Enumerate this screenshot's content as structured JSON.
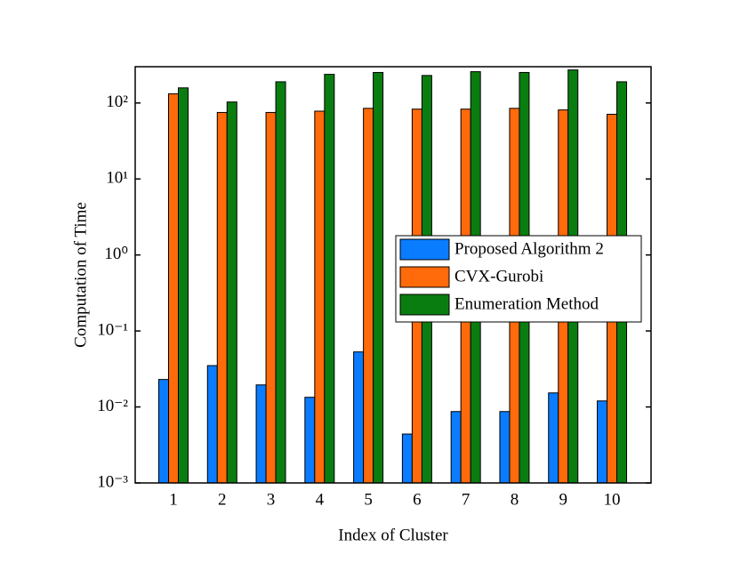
{
  "chart_data": {
    "type": "bar",
    "x_label": "Index of Cluster",
    "y_label": "Computation of Time",
    "categories": [
      "1",
      "2",
      "3",
      "4",
      "5",
      "6",
      "7",
      "8",
      "9",
      "10"
    ],
    "log_y": true,
    "ylim": [
      0.001,
      300
    ],
    "yticks": [
      {
        "value": 0.001,
        "label": "10⁻³"
      },
      {
        "value": 0.01,
        "label": "10⁻²"
      },
      {
        "value": 0.1,
        "label": "10⁻¹"
      },
      {
        "value": 1,
        "label": "10⁰"
      },
      {
        "value": 10,
        "label": "10¹"
      },
      {
        "value": 100,
        "label": "10²"
      }
    ],
    "legend_position": "center right",
    "series": [
      {
        "name": "Proposed Algorithm 2",
        "color": "#0a7cff",
        "values": [
          0.023,
          0.035,
          0.0195,
          0.0134,
          0.053,
          0.0044,
          0.0087,
          0.0087,
          0.0153,
          0.012
        ]
      },
      {
        "name": "CVX-Gurobi",
        "color": "#ff6a0a",
        "values": [
          132,
          75,
          75,
          78,
          85,
          83,
          83,
          85,
          81,
          71
        ]
      },
      {
        "name": "Enumeration Method",
        "color": "#0a7d10",
        "values": [
          158,
          103,
          190,
          238,
          252,
          230,
          258,
          252,
          272,
          190
        ]
      }
    ]
  }
}
